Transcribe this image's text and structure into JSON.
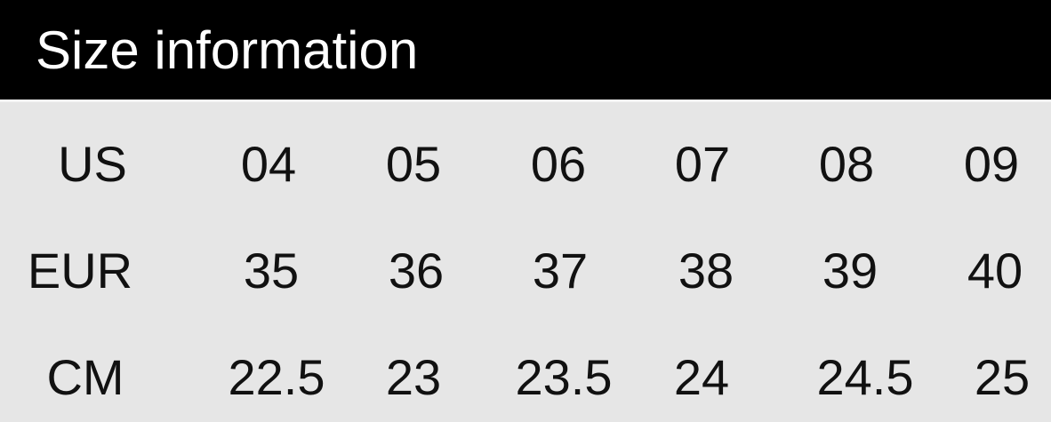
{
  "header": {
    "title": "Size information"
  },
  "table": {
    "rows": [
      {
        "label": "US",
        "values": [
          "04",
          "05",
          "06",
          "07",
          "08",
          "09"
        ]
      },
      {
        "label": "EUR",
        "values": [
          "35",
          "36",
          "37",
          "38",
          "39",
          "40"
        ]
      },
      {
        "label": "CM",
        "values": [
          "22.5",
          "23",
          "23.5",
          "24",
          "24.5",
          "25"
        ]
      }
    ]
  }
}
